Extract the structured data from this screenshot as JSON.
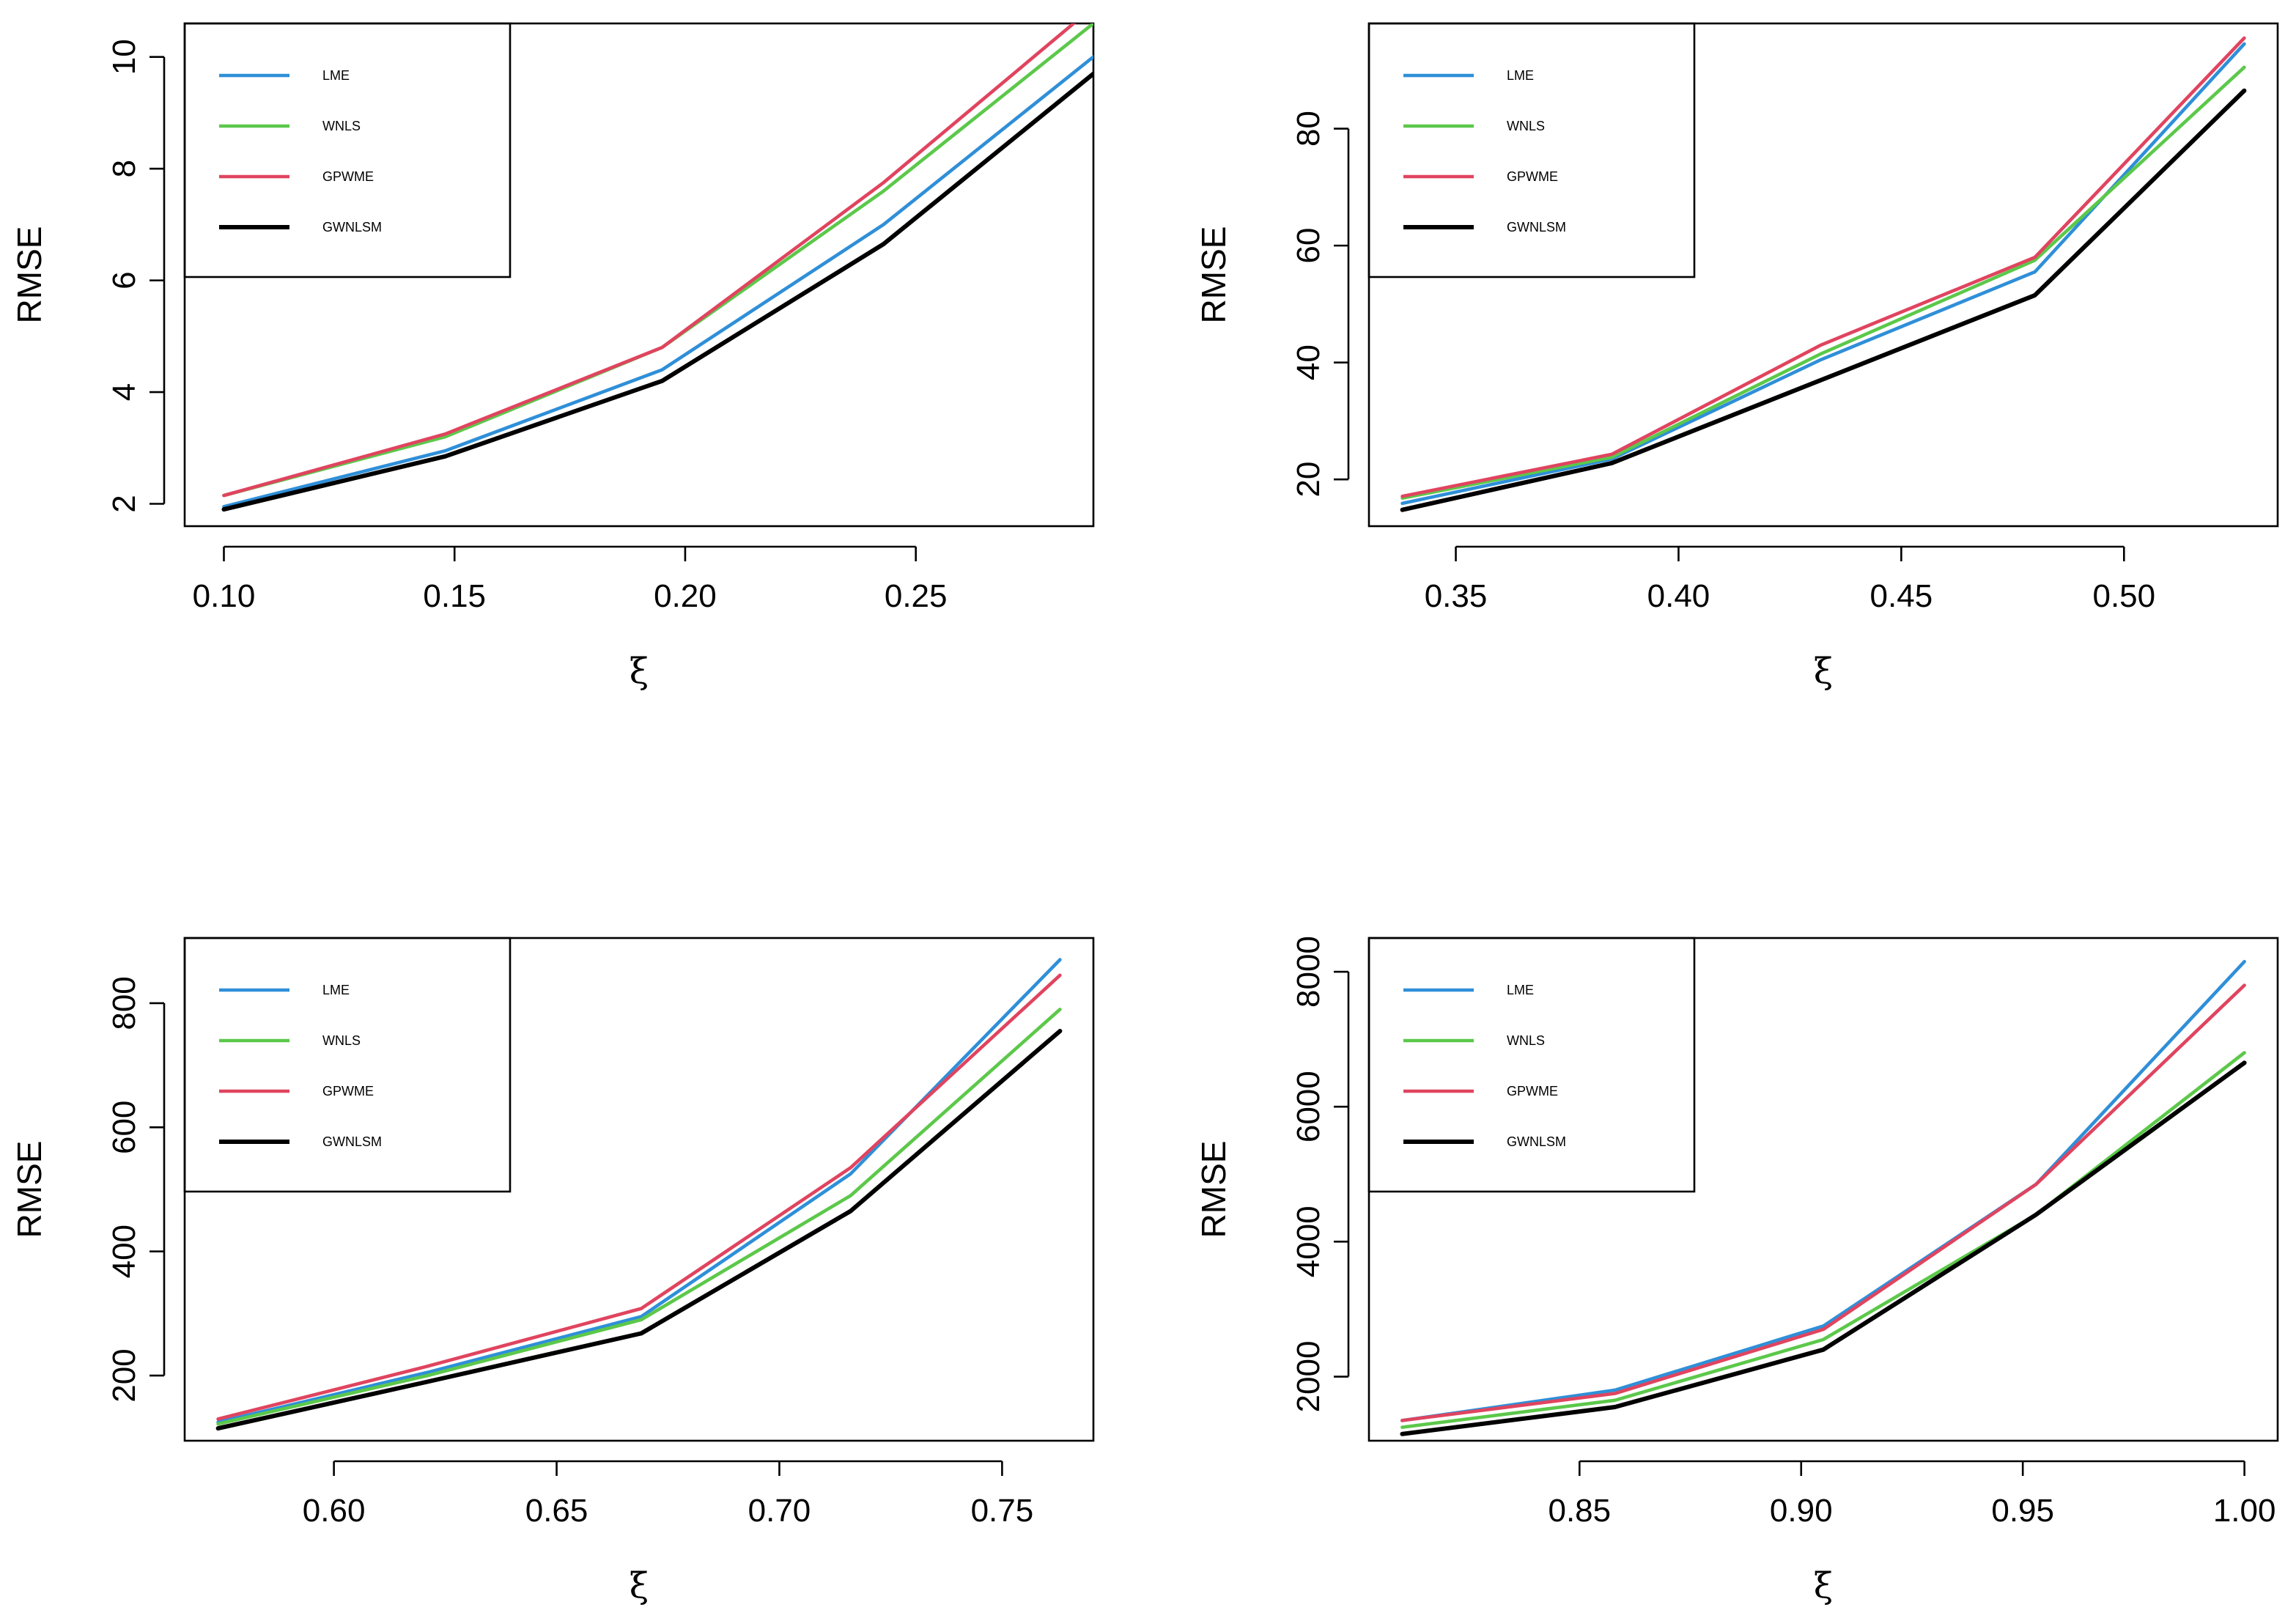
{
  "chart_data": [
    {
      "type": "line",
      "xlabel": "ξ",
      "ylabel": "RMSE",
      "x": [
        0.1,
        0.148,
        0.195,
        0.243,
        0.29
      ],
      "xlim": [
        0.0915,
        0.2885
      ],
      "ylim": [
        1.6,
        10.6
      ],
      "xticks": [
        0.1,
        0.15,
        0.2,
        0.25
      ],
      "xtick_labels": [
        "0.10",
        "0.15",
        "0.20",
        "0.25"
      ],
      "yticks": [
        2,
        4,
        6,
        8,
        10
      ],
      "ytick_labels": [
        "2",
        "4",
        "6",
        "8",
        "10"
      ],
      "legend_position": "top-left",
      "series": [
        {
          "name": "LME",
          "color": "#2F8FD8",
          "values": [
            1.95,
            2.95,
            4.4,
            7.0,
            10.1
          ]
        },
        {
          "name": "WNLS",
          "color": "#5CC84A",
          "values": [
            2.15,
            3.2,
            4.8,
            7.6,
            10.7
          ]
        },
        {
          "name": "GPWME",
          "color": "#E0445F",
          "values": [
            2.15,
            3.25,
            4.8,
            7.75,
            11.0
          ]
        },
        {
          "name": "GWNLSM",
          "color": "#000000",
          "values": [
            1.9,
            2.85,
            4.2,
            6.65,
            9.8
          ]
        }
      ]
    },
    {
      "type": "line",
      "xlabel": "ξ",
      "ylabel": "RMSE",
      "x": [
        0.338,
        0.385,
        0.432,
        0.48,
        0.527
      ],
      "xlim": [
        0.3305,
        0.5345
      ],
      "ylim": [
        12,
        98
      ],
      "xticks": [
        0.35,
        0.4,
        0.45,
        0.5
      ],
      "xtick_labels": [
        "0.35",
        "0.40",
        "0.45",
        "0.50"
      ],
      "yticks": [
        20,
        40,
        60,
        80
      ],
      "ytick_labels": [
        "20",
        "40",
        "60",
        "80"
      ],
      "legend_position": "top-left",
      "series": [
        {
          "name": "LME",
          "color": "#2F8FD8",
          "values": [
            15.9,
            23.5,
            40.5,
            55.5,
            94.5
          ]
        },
        {
          "name": "WNLS",
          "color": "#5CC84A",
          "values": [
            16.8,
            23.8,
            41.5,
            57.5,
            90.5
          ]
        },
        {
          "name": "GPWME",
          "color": "#E0445F",
          "values": [
            17.1,
            24.3,
            43.0,
            58.0,
            95.5
          ]
        },
        {
          "name": "GWNLSM",
          "color": "#000000",
          "values": [
            14.8,
            22.8,
            37.0,
            51.5,
            86.5
          ]
        }
      ]
    },
    {
      "type": "line",
      "xlabel": "ξ",
      "ylabel": "RMSE",
      "x": [
        0.574,
        0.621,
        0.669,
        0.716,
        0.763
      ],
      "xlim": [
        0.5665,
        0.7705
      ],
      "ylim": [
        95,
        905
      ],
      "xticks": [
        0.6,
        0.65,
        0.7,
        0.75
      ],
      "xtick_labels": [
        "0.60",
        "0.65",
        "0.70",
        "0.75"
      ],
      "yticks": [
        200,
        400,
        600,
        800
      ],
      "ytick_labels": [
        "200",
        "400",
        "600",
        "800"
      ],
      "legend_position": "top-left",
      "series": [
        {
          "name": "LME",
          "color": "#2F8FD8",
          "values": [
            125,
            205,
            295,
            525,
            870
          ]
        },
        {
          "name": "WNLS",
          "color": "#5CC84A",
          "values": [
            122,
            200,
            290,
            490,
            790
          ]
        },
        {
          "name": "GPWME",
          "color": "#E0445F",
          "values": [
            130,
            215,
            308,
            535,
            845
          ]
        },
        {
          "name": "GWNLSM",
          "color": "#000000",
          "values": [
            115,
            190,
            268,
            465,
            755
          ]
        }
      ]
    },
    {
      "type": "line",
      "xlabel": "ξ",
      "ylabel": "RMSE",
      "x": [
        0.81,
        0.858,
        0.905,
        0.953,
        1.0
      ],
      "xlim": [
        0.8025,
        1.0075
      ],
      "ylim": [
        1050,
        8500
      ],
      "xticks": [
        0.85,
        0.9,
        0.95,
        1.0
      ],
      "xtick_labels": [
        "0.85",
        "0.90",
        "0.95",
        "1.00"
      ],
      "yticks": [
        2000,
        4000,
        6000,
        8000
      ],
      "ytick_labels": [
        "2000",
        "4000",
        "6000",
        "8000"
      ],
      "legend_position": "top-left",
      "series": [
        {
          "name": "LME",
          "color": "#2F8FD8",
          "values": [
            1350,
            1800,
            2750,
            4850,
            8150
          ]
        },
        {
          "name": "WNLS",
          "color": "#5CC84A",
          "values": [
            1250,
            1650,
            2550,
            4400,
            6800
          ]
        },
        {
          "name": "GPWME",
          "color": "#E0445F",
          "values": [
            1350,
            1750,
            2700,
            4850,
            7800
          ]
        },
        {
          "name": "GWNLSM",
          "color": "#000000",
          "values": [
            1150,
            1550,
            2400,
            4400,
            6650
          ]
        }
      ]
    }
  ]
}
